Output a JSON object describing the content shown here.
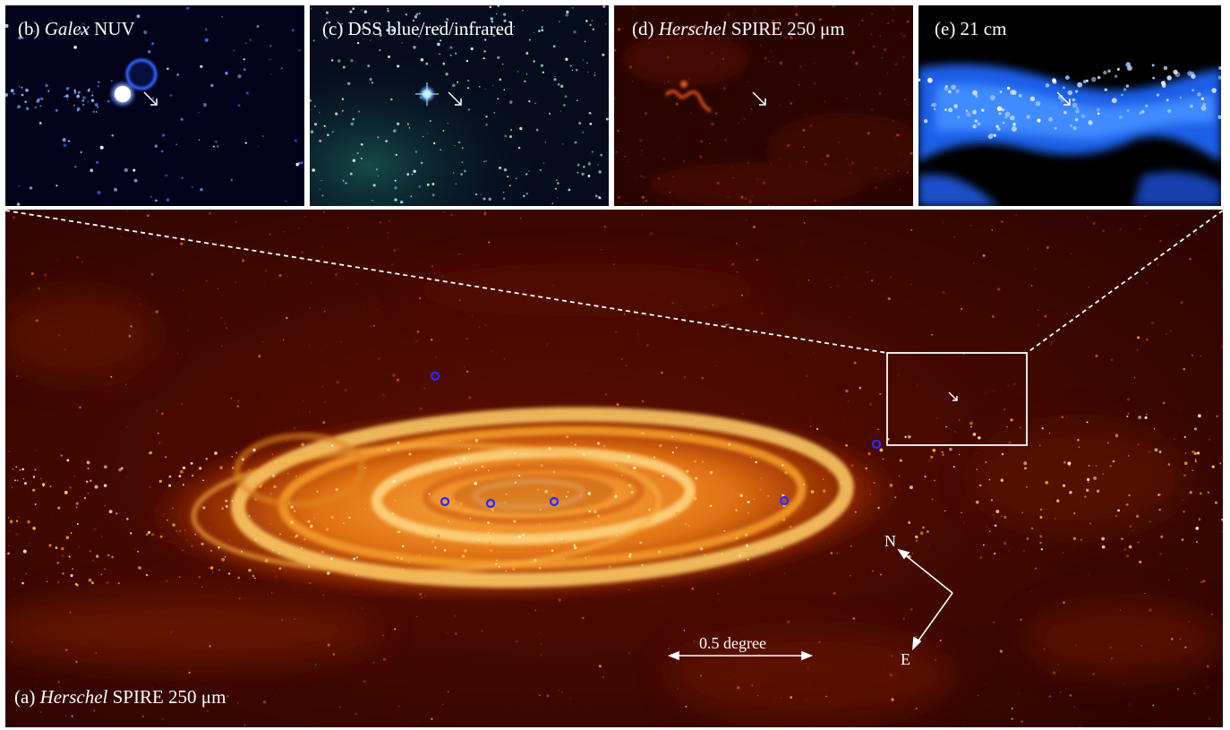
{
  "panels": {
    "b": {
      "label_prefix": "(b) ",
      "label_italic": "Galex",
      "label_suffix": " NUV"
    },
    "c": {
      "label_prefix": "(c) DSS blue/red/infrared",
      "label_italic": "",
      "label_suffix": ""
    },
    "d": {
      "label_prefix": "(d) ",
      "label_italic": "Herschel",
      "label_suffix": " SPIRE 250 μm"
    },
    "e": {
      "label_prefix": "(e) 21 cm",
      "label_italic": "",
      "label_suffix": ""
    },
    "a": {
      "label_prefix": "(a) ",
      "label_italic": "Herschel",
      "label_suffix": " SPIRE 250 μm"
    }
  },
  "scale_bar": {
    "label": "0.5 degree"
  },
  "compass": {
    "north": "N",
    "east": "E"
  },
  "colors": {
    "galex": "#3a7bff",
    "dss": "#bfe9ff",
    "herschel": "#ff6a00",
    "hi": "#2f7dff",
    "marker": "#2a2aff",
    "annotation": "#ffffff"
  }
}
